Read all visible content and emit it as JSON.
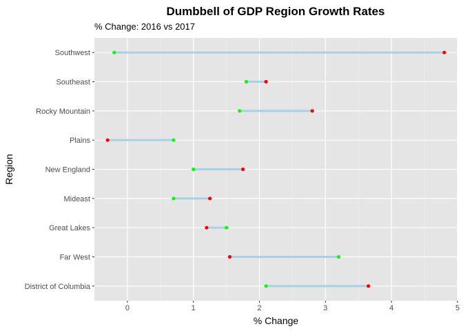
{
  "chart_data": {
    "type": "dumbbell",
    "title": "Dumbbell of GDP Region Growth Rates",
    "subtitle": "% Change: 2016 vs 2017",
    "xlabel": "% Change",
    "ylabel": "Region",
    "xlim": [
      -0.5,
      5.0
    ],
    "xticks": [
      0,
      1,
      2,
      3,
      4,
      5
    ],
    "categories": [
      "Southwest",
      "Southeast",
      "Rocky Mountain",
      "Plains",
      "New England",
      "Mideast",
      "Great Lakes",
      "Far West",
      "District of Columbia"
    ],
    "series": [
      {
        "color": "#00ff00",
        "values": [
          -0.2,
          1.8,
          1.7,
          0.7,
          1.0,
          0.7,
          1.5,
          3.2,
          2.1
        ]
      },
      {
        "color": "#ff0000",
        "values": [
          4.8,
          2.1,
          2.8,
          -0.3,
          1.75,
          1.25,
          1.2,
          1.55,
          3.65
        ]
      }
    ],
    "segment_color": "#a6d1e6",
    "panel_background": "#e5e5e5",
    "grid": true
  }
}
